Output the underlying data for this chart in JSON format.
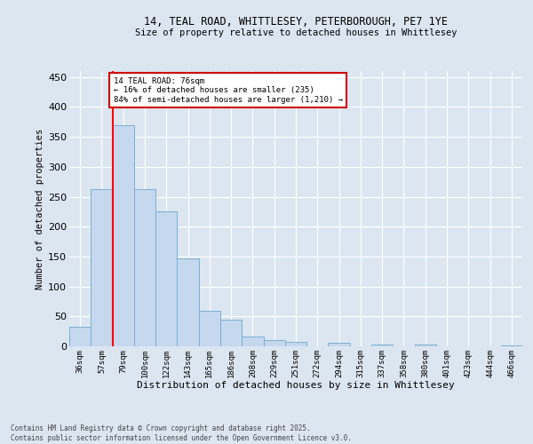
{
  "title_line1": "14, TEAL ROAD, WHITTLESEY, PETERBOROUGH, PE7 1YE",
  "title_line2": "Size of property relative to detached houses in Whittlesey",
  "xlabel": "Distribution of detached houses by size in Whittlesey",
  "ylabel": "Number of detached properties",
  "categories": [
    "36sqm",
    "57sqm",
    "79sqm",
    "100sqm",
    "122sqm",
    "143sqm",
    "165sqm",
    "186sqm",
    "208sqm",
    "229sqm",
    "251sqm",
    "272sqm",
    "294sqm",
    "315sqm",
    "337sqm",
    "358sqm",
    "380sqm",
    "401sqm",
    "423sqm",
    "444sqm",
    "466sqm"
  ],
  "values": [
    32,
    262,
    370,
    262,
    226,
    147,
    60,
    45,
    17,
    10,
    8,
    0,
    6,
    0,
    3,
    0,
    3,
    0,
    0,
    0,
    2
  ],
  "bar_color": "#c5d8ed",
  "bar_edge_color": "#7aafd4",
  "background_color": "#dce6f1",
  "grid_color": "#ffffff",
  "annotation_text": "14 TEAL ROAD: 76sqm\n← 16% of detached houses are smaller (235)\n84% of semi-detached houses are larger (1,210) →",
  "annotation_box_color": "#ffffff",
  "annotation_box_edge": "#cc0000",
  "ylim": [
    0,
    460
  ],
  "yticks": [
    0,
    50,
    100,
    150,
    200,
    250,
    300,
    350,
    400,
    450
  ],
  "footer_line1": "Contains HM Land Registry data © Crown copyright and database right 2025.",
  "footer_line2": "Contains public sector information licensed under the Open Government Licence v3.0."
}
